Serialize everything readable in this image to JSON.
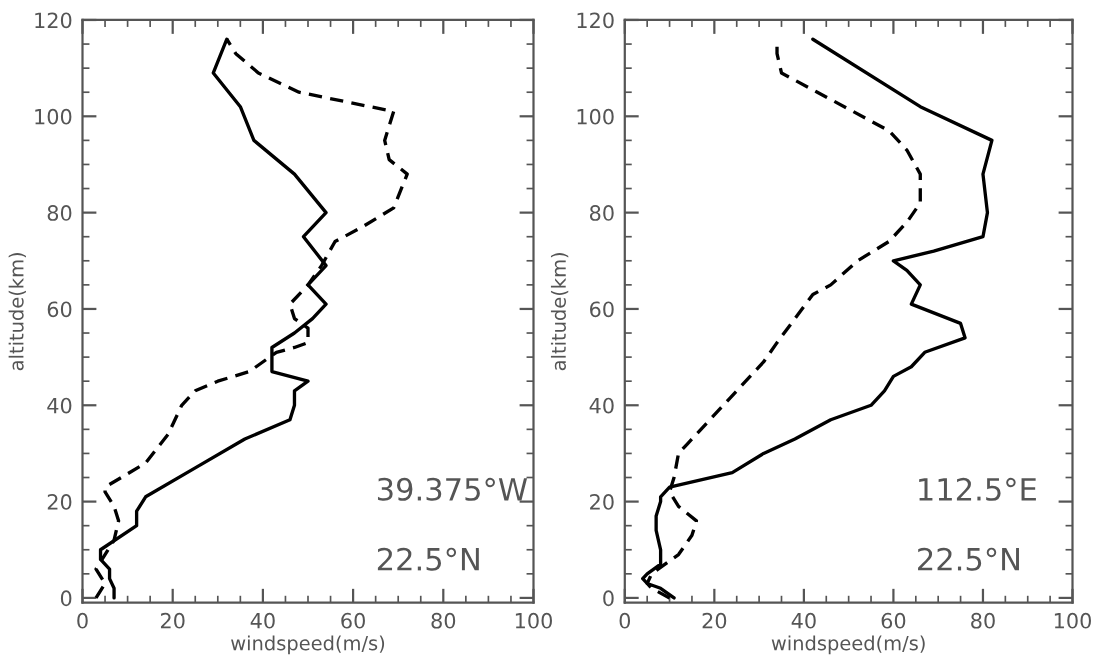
{
  "chart_data": [
    {
      "type": "line",
      "xlabel": "windspeed(m/s)",
      "ylabel": "altitude(km)",
      "xlim": [
        0,
        100
      ],
      "ylim": [
        -1,
        120
      ],
      "xticks": [
        0,
        20,
        40,
        60,
        80,
        100
      ],
      "yticks": [
        0,
        20,
        40,
        60,
        80,
        100,
        120
      ],
      "grid": false,
      "legend": false,
      "annotations": [
        "39.375°W",
        "22.5°N"
      ],
      "series": [
        {
          "color": "#000000",
          "line_style": "solid",
          "x": [
            7,
            7,
            6,
            6,
            4,
            4,
            12,
            12,
            14,
            25,
            36,
            46,
            47,
            47,
            50,
            42,
            42,
            47,
            51,
            54,
            50,
            54,
            49,
            54,
            47,
            38,
            35,
            29,
            32
          ],
          "values": [
            0,
            2,
            4,
            6,
            8,
            10,
            15,
            18,
            21,
            27,
            33,
            37,
            40,
            43,
            45,
            47,
            52,
            55,
            58,
            61,
            65,
            69,
            75,
            80,
            88,
            95,
            102,
            109,
            116
          ]
        },
        {
          "color": "#000000",
          "line_style": "dashed",
          "x": [
            3,
            5,
            3,
            5,
            7,
            8,
            7,
            5,
            5,
            14,
            19,
            22,
            25,
            30,
            37,
            43,
            47,
            50,
            50,
            47,
            46,
            50,
            53,
            56,
            62,
            69,
            72,
            68,
            67,
            69,
            48,
            39,
            34,
            32
          ],
          "values": [
            0,
            3,
            6,
            9,
            12,
            16,
            19,
            22,
            23,
            28,
            34,
            40,
            43,
            45,
            47,
            51,
            52,
            53,
            56,
            58,
            61,
            65,
            69,
            74,
            77,
            81,
            88,
            91,
            95,
            101,
            105,
            109,
            113,
            116
          ]
        }
      ]
    },
    {
      "type": "line",
      "xlabel": "windspeed(m/s)",
      "ylabel": "altitude(km)",
      "xlim": [
        0,
        100
      ],
      "ylim": [
        -1,
        120
      ],
      "xticks": [
        0,
        20,
        40,
        60,
        80,
        100
      ],
      "yticks": [
        0,
        20,
        40,
        60,
        80,
        100,
        120
      ],
      "grid": false,
      "legend": false,
      "annotations": [
        "112.5°E",
        "22.5°N"
      ],
      "series": [
        {
          "color": "#000000",
          "line_style": "solid",
          "x": [
            11,
            8,
            5,
            4,
            5,
            8,
            8,
            7,
            7,
            8,
            8,
            10,
            24,
            31,
            38,
            46,
            55,
            58,
            60,
            64,
            67,
            76,
            75,
            64,
            66,
            63,
            60,
            69,
            80,
            81,
            80,
            82,
            66,
            42
          ],
          "values": [
            0,
            2,
            3,
            4,
            5,
            7,
            10,
            14,
            17,
            20,
            21,
            23,
            26,
            30,
            33,
            37,
            40,
            43,
            46,
            48,
            51,
            54,
            57,
            61,
            65,
            68,
            70,
            72,
            75,
            80,
            88,
            95,
            102,
            116
          ]
        },
        {
          "color": "#000000",
          "line_style": "dashed",
          "x": [
            10,
            6,
            5,
            6,
            9,
            12,
            15,
            16,
            12,
            10,
            11,
            12,
            14,
            19,
            25,
            31,
            34,
            38,
            42,
            46,
            52,
            59,
            63,
            66,
            66,
            63,
            59,
            43,
            35,
            34,
            34
          ],
          "values": [
            0,
            2,
            3,
            5,
            7,
            9,
            13,
            16,
            19,
            22,
            25,
            30,
            32,
            37,
            43,
            49,
            53,
            58,
            63,
            65,
            70,
            74,
            78,
            82,
            88,
            93,
            97,
            105,
            109,
            113,
            115
          ]
        }
      ]
    }
  ]
}
